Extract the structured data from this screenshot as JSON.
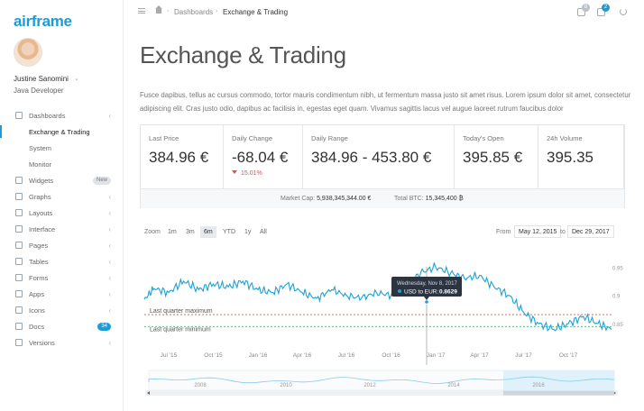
{
  "app": {
    "brand": "airframe"
  },
  "user": {
    "name": "Justine Sanomini",
    "role": "Java Developer"
  },
  "nav": [
    {
      "label": "Dashboards",
      "icon": "dashboard-icon",
      "chevron": "‹"
    },
    {
      "label": "Exchange & Trading",
      "sub": true,
      "active": true
    },
    {
      "label": "System",
      "sub": true
    },
    {
      "label": "Monitor",
      "sub": true
    },
    {
      "label": "Widgets",
      "icon": "widgets-icon",
      "badge": "New",
      "badge_color": "gray"
    },
    {
      "label": "Graphs",
      "icon": "graphs-icon",
      "chevron": "‹"
    },
    {
      "label": "Layouts",
      "icon": "layouts-icon",
      "chevron": "‹"
    },
    {
      "label": "Interface",
      "icon": "interface-icon",
      "chevron": "‹"
    },
    {
      "label": "Pages",
      "icon": "pages-icon",
      "chevron": "‹"
    },
    {
      "label": "Tables",
      "icon": "tables-icon",
      "chevron": "‹"
    },
    {
      "label": "Forms",
      "icon": "forms-icon",
      "chevron": "‹"
    },
    {
      "label": "Apps",
      "icon": "apps-icon",
      "chevron": "‹"
    },
    {
      "label": "Icons",
      "icon": "icons-icon",
      "chevron": "‹"
    },
    {
      "label": "Docs",
      "icon": "docs-icon",
      "badge": "34",
      "badge_color": "blue"
    },
    {
      "label": "Versions",
      "icon": "versions-icon",
      "chevron": "‹"
    }
  ],
  "breadcrumb": {
    "parent": "Dashboards",
    "current": "Exchange & Trading"
  },
  "topbar": {
    "notifications_count": "8",
    "messages_count": "2"
  },
  "page": {
    "title": "Exchange & Trading",
    "lead": "Fusce dapibus, tellus ac cursus commodo, tortor mauris condimentum nibh, ut fermentum massa justo sit amet risus. Lorem ipsum dolor sit amet, consectetur adipiscing elit. Cras justo odio, dapibus ac facilisis in, egestas eget quam. Vivamus sagittis lacus vel augue laoreet rutrum faucibus dolor"
  },
  "stats": {
    "last_price": {
      "label": "Last Price",
      "value": "384.96 €"
    },
    "daily_change": {
      "label": "Daily Change",
      "value": "-68.04 €",
      "change": "15.01%"
    },
    "daily_range": {
      "label": "Daily Range",
      "value": "384.96 - 453.80 €"
    },
    "todays_open": {
      "label": "Today's Open",
      "value": "395.85 €"
    },
    "volume": {
      "label": "24h Volume",
      "value": "395.35"
    },
    "market_cap_label": "Market Cap:",
    "market_cap": "5,938,345,344.00 €",
    "total_btc_label": "Total BTC:",
    "total_btc": "15,345,400 ₿"
  },
  "chart_controls": {
    "zoom_label": "Zoom",
    "zoom_options": [
      "1m",
      "3m",
      "6m",
      "YTD",
      "1y",
      "All"
    ],
    "zoom_selected": "6m",
    "from_label": "From",
    "from_value": "May 12, 2015",
    "to_label": "to",
    "to_value": "Dec 29, 2017"
  },
  "colors": {
    "accent": "#1e9bd7",
    "line": "#1da1d6",
    "max_line": "#d9534f",
    "min_line": "#2ea764"
  },
  "chart_data": {
    "type": "line",
    "title": "",
    "xlabel": "",
    "ylabel": "",
    "series": [
      {
        "name": "USD to EUR",
        "x": [
          "2015-05-12",
          "2015-06-01",
          "2015-07-01",
          "2015-08-01",
          "2015-09-01",
          "2015-10-01",
          "2015-11-01",
          "2015-12-01",
          "2016-01-01",
          "2016-02-01",
          "2016-03-01",
          "2016-04-01",
          "2016-05-01",
          "2016-06-01",
          "2016-07-01",
          "2016-08-01",
          "2016-09-01",
          "2016-10-01",
          "2016-11-01",
          "2016-12-01",
          "2017-01-01",
          "2017-02-01",
          "2017-03-01",
          "2017-04-01",
          "2017-05-01",
          "2017-06-01",
          "2017-07-01",
          "2017-08-01",
          "2017-09-01",
          "2017-10-01",
          "2017-11-01",
          "2017-12-01",
          "2017-12-29"
        ],
        "values": [
          0.893,
          0.912,
          0.905,
          0.925,
          0.91,
          0.92,
          0.915,
          0.925,
          0.91,
          0.905,
          0.92,
          0.905,
          0.895,
          0.91,
          0.9,
          0.895,
          0.905,
          0.9,
          0.915,
          0.94,
          0.95,
          0.94,
          0.93,
          0.935,
          0.915,
          0.9,
          0.87,
          0.85,
          0.84,
          0.85,
          0.863,
          0.85,
          0.84
        ]
      }
    ],
    "ylim": [
      0.82,
      0.96
    ],
    "y_ticks": [
      "0.95",
      "0.9",
      "0.85"
    ],
    "x_ticks": [
      "Jul '15",
      "Oct '15",
      "Jan '16",
      "Apr '16",
      "Jul '16",
      "Oct '16",
      "Jan '17",
      "Apr '17",
      "Jul '17",
      "Oct '17"
    ],
    "plot_lines": [
      {
        "label": "Last quarter maximum",
        "value": 0.866
      },
      {
        "label": "Last quarter minimum",
        "value": 0.845
      }
    ],
    "tooltip": {
      "date": "Wednesday, Nov 8, 2017",
      "series": "USD to EUR:",
      "value": "0.8629"
    },
    "navigator": {
      "ticks": [
        "2008",
        "2010",
        "2012",
        "2014",
        "2016"
      ],
      "range_selection": [
        "2015-05-12",
        "2017-12-29"
      ]
    }
  }
}
